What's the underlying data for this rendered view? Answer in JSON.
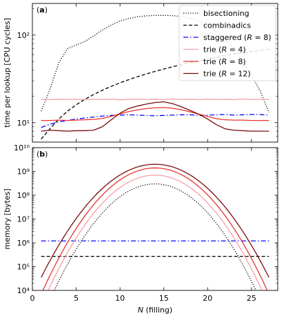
{
  "chart_data": [
    {
      "panel": "a",
      "panel_label": "(a)",
      "type": "line",
      "ylabel": "time per lookup [CPU cycles]",
      "xlabel": "",
      "xlim": [
        0,
        28
      ],
      "ylim": [
        6,
        230
      ],
      "yscale": "log",
      "xticks": [
        0,
        5,
        10,
        15,
        20,
        25
      ],
      "yticks": [
        {
          "value": 10,
          "label": "10¹"
        },
        {
          "value": 100,
          "label": "10²"
        }
      ],
      "legend_placement": "top-right",
      "series": [
        {
          "name": "bisectioning",
          "color": "#000000",
          "style": "dotted",
          "points": [
            [
              1,
              13.5
            ],
            [
              2,
              24
            ],
            [
              3,
              48
            ],
            [
              4,
              70
            ],
            [
              5,
              77
            ],
            [
              6,
              85
            ],
            [
              7,
              98
            ],
            [
              8,
              115
            ],
            [
              9,
              130
            ],
            [
              10,
              145
            ],
            [
              11,
              155
            ],
            [
              12,
              162
            ],
            [
              13,
              166
            ],
            [
              14,
              168
            ],
            [
              15,
              168
            ],
            [
              16,
              167
            ],
            [
              17,
              163
            ],
            [
              18,
              156
            ],
            [
              19,
              145
            ],
            [
              20,
              128
            ],
            [
              21,
              110
            ],
            [
              22,
              90
            ],
            [
              23,
              70
            ],
            [
              24,
              50
            ],
            [
              25,
              35
            ],
            [
              26,
              23
            ],
            [
              27,
              13
            ]
          ]
        },
        {
          "name": "combinadics",
          "color": "#000000",
          "style": "dashed",
          "points": [
            [
              1,
              6.5
            ],
            [
              2,
              8.5
            ],
            [
              3,
              11
            ],
            [
              4,
              13.5
            ],
            [
              5,
              16
            ],
            [
              6,
              18.5
            ],
            [
              7,
              21
            ],
            [
              8,
              23.5
            ],
            [
              9,
              26
            ],
            [
              10,
              28.5
            ],
            [
              11,
              31
            ],
            [
              12,
              33.5
            ],
            [
              13,
              36
            ],
            [
              14,
              38.5
            ],
            [
              15,
              41
            ],
            [
              16,
              43.5
            ],
            [
              17,
              46
            ],
            [
              18,
              48.5
            ],
            [
              19,
              51
            ],
            [
              20,
              53.5
            ],
            [
              21,
              56
            ],
            [
              22,
              58.5
            ],
            [
              23,
              61
            ],
            [
              24,
              63
            ],
            [
              25,
              65
            ],
            [
              26,
              67
            ],
            [
              27,
              69
            ]
          ]
        },
        {
          "name": "staggered (R = 8)",
          "color": "#0000ff",
          "style": "dashdot",
          "points": [
            [
              1,
              8.8
            ],
            [
              2,
              9.6
            ],
            [
              3,
              10.2
            ],
            [
              4,
              10.6
            ],
            [
              5,
              11.0
            ],
            [
              6,
              11.3
            ],
            [
              7,
              11.6
            ],
            [
              8,
              11.9
            ],
            [
              9,
              12.1
            ],
            [
              10,
              12.2
            ],
            [
              11,
              12.3
            ],
            [
              12,
              12.2
            ],
            [
              13,
              12.1
            ],
            [
              14,
              12.0
            ],
            [
              15,
              12.1
            ],
            [
              16,
              12.2
            ],
            [
              17,
              12.3
            ],
            [
              18,
              12.3
            ],
            [
              19,
              12.1
            ],
            [
              20,
              12.2
            ],
            [
              21,
              12.3
            ],
            [
              22,
              12.4
            ],
            [
              23,
              12.2
            ],
            [
              24,
              12.3
            ],
            [
              25,
              12.4
            ],
            [
              26,
              12.4
            ],
            [
              27,
              12.2
            ]
          ]
        },
        {
          "name": "trie (R = 4)",
          "color": "#f4a0a8",
          "style": "solid",
          "points": [
            [
              1,
              18.5
            ],
            [
              2,
              18.3
            ],
            [
              3,
              18.5
            ],
            [
              4,
              18.4
            ],
            [
              5,
              18.6
            ],
            [
              6,
              18.3
            ],
            [
              7,
              18.5
            ],
            [
              8,
              18.4
            ],
            [
              9,
              18.6
            ],
            [
              10,
              18.2
            ],
            [
              11,
              18.5
            ],
            [
              12,
              18.6
            ],
            [
              13,
              18.4
            ],
            [
              14,
              18.5
            ],
            [
              15,
              18.3
            ],
            [
              16,
              18.6
            ],
            [
              17,
              18.4
            ],
            [
              18,
              18.5
            ],
            [
              19,
              18.3
            ],
            [
              20,
              18.6
            ],
            [
              21,
              18.4
            ],
            [
              22,
              18.5
            ],
            [
              23,
              18.3
            ],
            [
              24,
              18.6
            ],
            [
              25,
              18.4
            ],
            [
              26,
              18.5
            ],
            [
              27,
              18.4
            ]
          ]
        },
        {
          "name": "trie (R = 8)",
          "color": "#e8322e",
          "style": "solid",
          "points": [
            [
              1,
              10.6
            ],
            [
              2,
              10.6
            ],
            [
              3,
              10.7
            ],
            [
              4,
              10.6
            ],
            [
              5,
              10.7
            ],
            [
              6,
              10.8
            ],
            [
              7,
              10.9
            ],
            [
              8,
              11.2
            ],
            [
              9,
              11.8
            ],
            [
              10,
              12.6
            ],
            [
              11,
              13.4
            ],
            [
              12,
              14.0
            ],
            [
              13,
              14.5
            ],
            [
              14,
              14.8
            ],
            [
              15,
              14.9
            ],
            [
              16,
              14.6
            ],
            [
              17,
              14.0
            ],
            [
              18,
              13.3
            ],
            [
              19,
              12.5
            ],
            [
              20,
              11.8
            ],
            [
              21,
              11.1
            ],
            [
              22,
              10.8
            ],
            [
              23,
              10.7
            ],
            [
              24,
              10.7
            ],
            [
              25,
              10.6
            ],
            [
              26,
              10.6
            ],
            [
              27,
              10.6
            ]
          ]
        },
        {
          "name": "trie (R = 12)",
          "color": "#7a0a0a",
          "style": "solid",
          "points": [
            [
              1,
              8.0
            ],
            [
              2,
              8.2
            ],
            [
              3,
              8.1
            ],
            [
              4,
              8.0
            ],
            [
              5,
              8.1
            ],
            [
              6,
              8.1
            ],
            [
              7,
              8.2
            ],
            [
              8,
              9.0
            ],
            [
              9,
              10.8
            ],
            [
              10,
              12.8
            ],
            [
              11,
              14.5
            ],
            [
              12,
              15.5
            ],
            [
              13,
              16.3
            ],
            [
              14,
              17.0
            ],
            [
              15,
              17.3
            ],
            [
              16,
              16.5
            ],
            [
              17,
              15.2
            ],
            [
              18,
              13.8
            ],
            [
              19,
              12.5
            ],
            [
              20,
              11.0
            ],
            [
              21,
              9.5
            ],
            [
              22,
              8.5
            ],
            [
              23,
              8.2
            ],
            [
              24,
              8.1
            ],
            [
              25,
              8.0
            ],
            [
              26,
              8.0
            ],
            [
              27,
              8.0
            ]
          ]
        }
      ]
    },
    {
      "panel": "b",
      "panel_label": "(b)",
      "type": "line",
      "ylabel": "memory [bytes]",
      "xlabel_prefix": "N",
      "xlabel_suffix": " (filling)",
      "xlim": [
        0,
        28
      ],
      "ylim": [
        10000,
        10000000000
      ],
      "yscale": "log",
      "xticks": [
        0,
        5,
        10,
        15,
        20,
        25
      ],
      "yticks": [
        {
          "value": 10000,
          "label": "10⁴"
        },
        {
          "value": 100000,
          "label": "10⁵"
        },
        {
          "value": 1000000,
          "label": "10⁶"
        },
        {
          "value": 10000000,
          "label": "10⁷"
        },
        {
          "value": 100000000,
          "label": "10⁸"
        },
        {
          "value": 1000000000,
          "label": "10⁹"
        },
        {
          "value": 10000000000,
          "label": "10¹⁰"
        }
      ],
      "series": [
        {
          "name": "bisectioning",
          "color": "#000000",
          "style": "dotted",
          "formula": "parabola",
          "params": {
            "peak": 300000000.0,
            "center": 14.0,
            "edge_x": 2.5,
            "edge_val": 10000.0
          },
          "x_range": [
            2.5,
            25.5
          ]
        },
        {
          "name": "combinadics",
          "color": "#000000",
          "style": "dashed",
          "constant": 270000.0,
          "x_range": [
            1,
            27
          ]
        },
        {
          "name": "staggered (R = 8)",
          "color": "#0000ff",
          "style": "dashdot",
          "constant": 1200000.0,
          "x_range": [
            1,
            27
          ]
        },
        {
          "name": "trie (R = 4)",
          "color": "#f4a0a8",
          "style": "solid",
          "formula": "parabola",
          "params": {
            "peak": 700000000.0,
            "center": 14.0,
            "edge_x": 1.8,
            "edge_val": 10000.0
          },
          "x_range": [
            1.8,
            26.2
          ]
        },
        {
          "name": "trie (R = 8)",
          "color": "#e8322e",
          "style": "solid",
          "formula": "parabola",
          "params": {
            "peak": 1400000000.0,
            "center": 14.0,
            "edge_x": 1.2,
            "edge_val": 10000.0
          },
          "x_range": [
            1.2,
            26.8
          ]
        },
        {
          "name": "trie (R = 12)",
          "color": "#7a0a0a",
          "style": "solid",
          "formula": "parabola",
          "params": {
            "peak": 2000000000.0,
            "center": 14.0,
            "edge_x": 1.0,
            "edge_val": 35000.0
          },
          "x_range": [
            1.0,
            27.0
          ]
        }
      ]
    }
  ]
}
